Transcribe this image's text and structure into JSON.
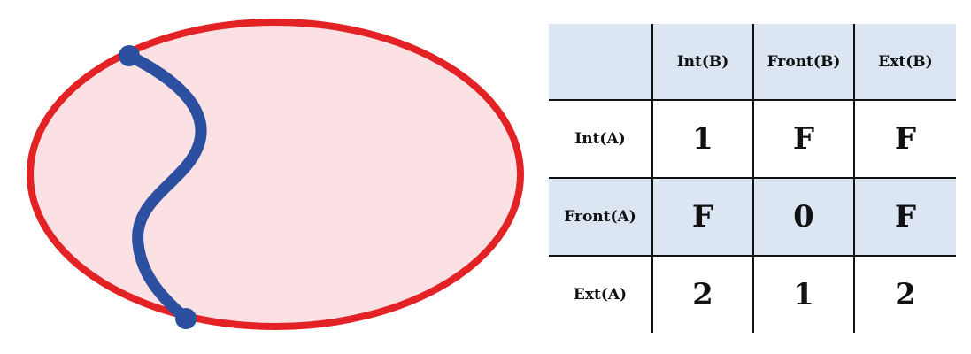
{
  "colors": {
    "region_fill": "#fbe1e3",
    "region_boundary": "#e32226",
    "line": "#2c4fa0",
    "table_shade": "#dce6f2"
  },
  "matrix": {
    "column_headers": [
      "",
      "Int(B)",
      "Front(B)",
      "Ext(B)"
    ],
    "rows": [
      {
        "label": "Int(A)",
        "values": [
          "1",
          "F",
          "F"
        ]
      },
      {
        "label": "Front(A)",
        "values": [
          "F",
          "0",
          "F"
        ]
      },
      {
        "label": "Ext(A)",
        "values": [
          "2",
          "1",
          "2"
        ]
      }
    ]
  }
}
